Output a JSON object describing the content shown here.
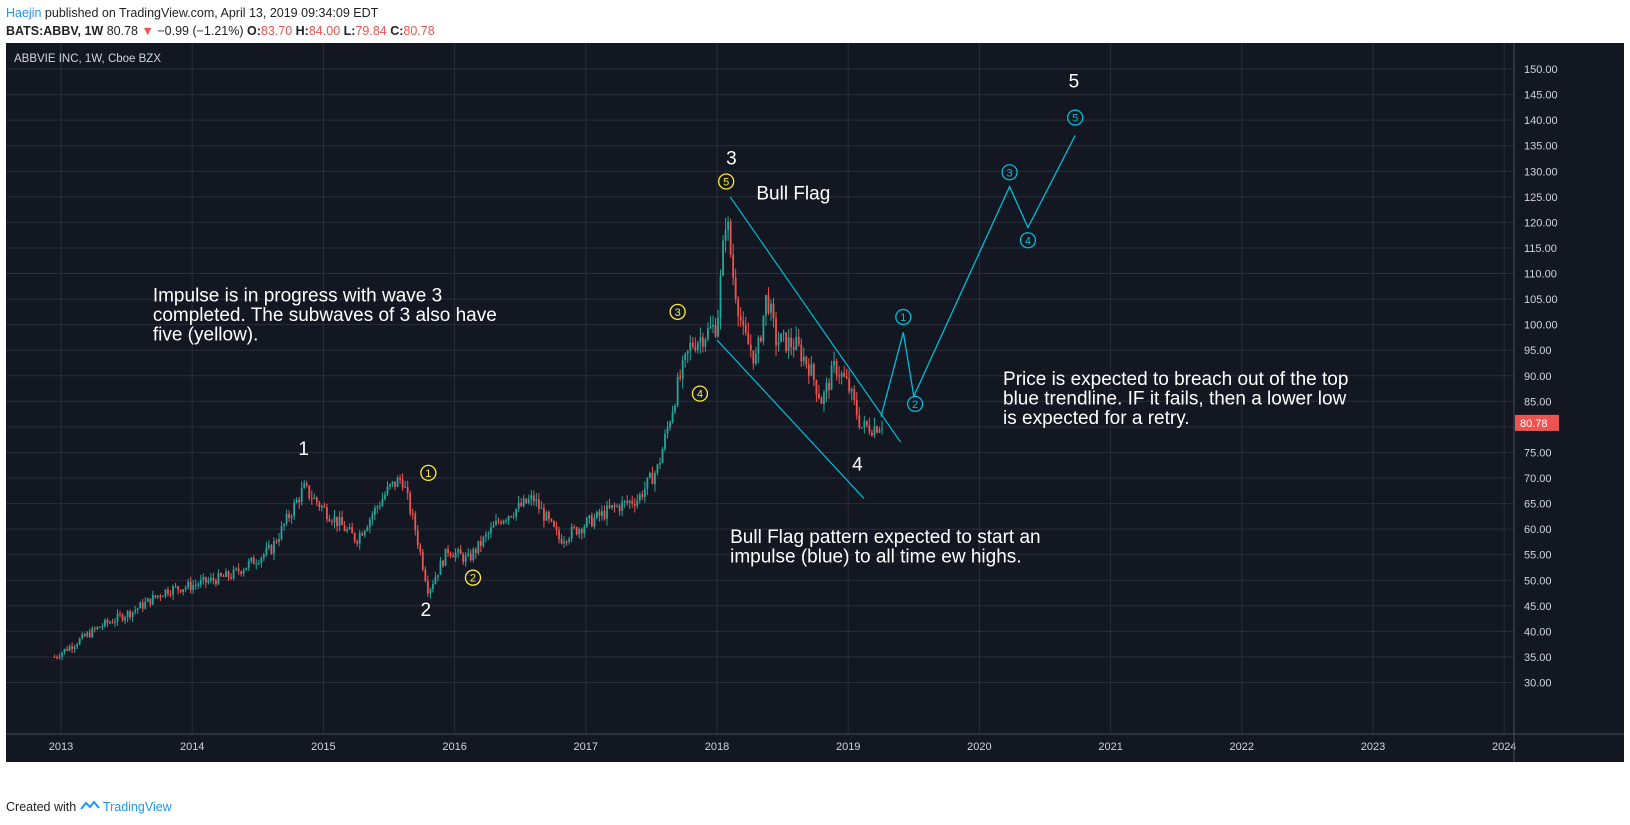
{
  "header": {
    "author": "Haejin",
    "published": "published on TradingView.com, April 13, 2019 09:34:09 EDT"
  },
  "quote": {
    "symbol": "BATS:ABBV, 1W",
    "last": "80.78",
    "change": "−0.99 (−1.21%)",
    "o_label": "O:",
    "o": "83.70",
    "h_label": "H:",
    "h": "84.00",
    "l_label": "L:",
    "l": "79.84",
    "c_label": "C:",
    "c": "80.78"
  },
  "footer": {
    "created": "Created with",
    "brand": "TradingView"
  },
  "colors": {
    "bg": "#131722",
    "grid": "#2a2e39",
    "up": "#26a69a",
    "down": "#ef5350",
    "annotation": "#00bcd4",
    "subwave": "#ffeb3b"
  },
  "chart_data": {
    "type": "candlestick",
    "title": "ABBVIE INC, 1W, Cboe BZX",
    "x_ticks": [
      "2013",
      "2014",
      "2015",
      "2016",
      "2017",
      "2018",
      "2019",
      "2020",
      "2021",
      "2022",
      "2023",
      "2024"
    ],
    "y_ticks": [
      "30.00",
      "35.00",
      "40.00",
      "45.00",
      "50.00",
      "55.00",
      "60.00",
      "65.00",
      "70.00",
      "75.00",
      "80.00",
      "85.00",
      "90.00",
      "95.00",
      "100.00",
      "105.00",
      "110.00",
      "115.00",
      "120.00",
      "125.00",
      "130.00",
      "135.00",
      "140.00",
      "145.00",
      "150.00"
    ],
    "ylim": [
      30,
      152
    ],
    "last_price_label": "80.78",
    "price_path": [
      [
        2012.95,
        35
      ],
      [
        2013.3,
        41
      ],
      [
        2013.55,
        44
      ],
      [
        2013.8,
        48
      ],
      [
        2014.0,
        49
      ],
      [
        2014.3,
        51
      ],
      [
        2014.6,
        56
      ],
      [
        2014.85,
        68
      ],
      [
        2015.0,
        64
      ],
      [
        2015.25,
        58
      ],
      [
        2015.5,
        68
      ],
      [
        2015.6,
        70
      ],
      [
        2015.7,
        60
      ],
      [
        2015.8,
        48
      ],
      [
        2015.95,
        56
      ],
      [
        2016.1,
        54
      ],
      [
        2016.35,
        62
      ],
      [
        2016.6,
        66
      ],
      [
        2016.8,
        58
      ],
      [
        2017.0,
        61
      ],
      [
        2017.2,
        64
      ],
      [
        2017.4,
        66
      ],
      [
        2017.55,
        72
      ],
      [
        2017.7,
        88
      ],
      [
        2017.8,
        96
      ],
      [
        2018.0,
        100
      ],
      [
        2018.07,
        122
      ],
      [
        2018.12,
        110
      ],
      [
        2018.2,
        98
      ],
      [
        2018.3,
        93
      ],
      [
        2018.38,
        106
      ],
      [
        2018.45,
        97
      ],
      [
        2018.6,
        96
      ],
      [
        2018.7,
        92
      ],
      [
        2018.8,
        85
      ],
      [
        2018.9,
        92
      ],
      [
        2019.0,
        88
      ],
      [
        2019.1,
        80
      ],
      [
        2019.2,
        80
      ],
      [
        2019.27,
        81
      ]
    ],
    "trendlines": [
      {
        "name": "flag-top",
        "points": [
          [
            2018.1,
            125
          ],
          [
            2019.4,
            77
          ]
        ]
      },
      {
        "name": "flag-bottom",
        "points": [
          [
            2018.0,
            97
          ],
          [
            2019.12,
            66
          ]
        ]
      }
    ],
    "projection": [
      [
        2019.25,
        82
      ],
      [
        2019.42,
        98.5
      ],
      [
        2019.5,
        86
      ],
      [
        2020.23,
        127
      ],
      [
        2020.37,
        119
      ],
      [
        2020.73,
        137
      ]
    ],
    "wave_labels": [
      {
        "text": "1",
        "x": 2014.85,
        "y": 74.5
      },
      {
        "text": "2",
        "x": 2015.78,
        "y": 43
      },
      {
        "text": "3",
        "x": 2018.11,
        "y": 131.3
      },
      {
        "text": "4",
        "x": 2019.07,
        "y": 71.5
      },
      {
        "text": "5",
        "x": 2020.72,
        "y": 146.4
      }
    ],
    "subwaves_yellow": [
      {
        "text": "1",
        "x": 2015.8,
        "y": 71
      },
      {
        "text": "2",
        "x": 2016.14,
        "y": 50.5
      },
      {
        "text": "3",
        "x": 2017.7,
        "y": 102.5
      },
      {
        "text": "4",
        "x": 2017.87,
        "y": 86.5
      },
      {
        "text": "5",
        "x": 2018.07,
        "y": 128
      }
    ],
    "subwaves_blue": [
      {
        "text": "1",
        "x": 2019.42,
        "y": 101.5
      },
      {
        "text": "2",
        "x": 2019.51,
        "y": 84.5
      },
      {
        "text": "3",
        "x": 2020.23,
        "y": 129.8
      },
      {
        "text": "4",
        "x": 2020.37,
        "y": 116.5
      },
      {
        "text": "5",
        "x": 2020.73,
        "y": 140.5
      }
    ],
    "annotations": [
      {
        "lines": [
          "Impulse is in progress with wave 3",
          "completed. The subwaves of 3 also have",
          "five (yellow)."
        ],
        "x": 2013.7,
        "y": 104.5
      },
      {
        "lines": [
          "Bull Flag"
        ],
        "x": 2018.3,
        "y": 124.5
      },
      {
        "lines": [
          "Price is expected to breach out of the top",
          "blue trendline. IF it fails, then a lower low",
          "is expected for a retry."
        ],
        "x": 2020.18,
        "y": 88.2
      },
      {
        "lines": [
          "Bull Flag pattern expected to start an",
          "impulse (blue) to all time ew highs."
        ],
        "x": 2018.1,
        "y": 57.3
      }
    ]
  }
}
